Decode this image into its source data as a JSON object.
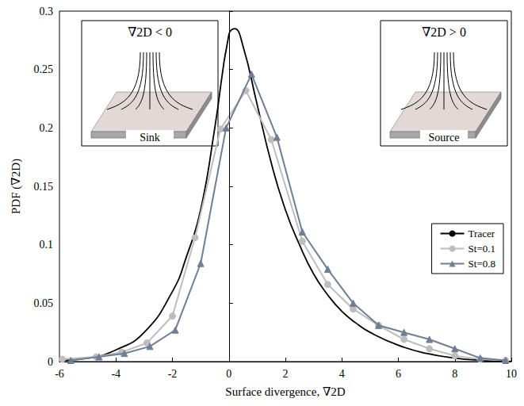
{
  "chart_data": {
    "type": "line",
    "x_label": "Surface divergence, ∇2D",
    "y_label": "PDF (∇2D)",
    "xlim": [
      -6,
      10
    ],
    "xticks": [
      -6,
      -4,
      -2,
      0,
      2,
      4,
      6,
      8,
      10
    ],
    "ylim": [
      0,
      0.3
    ],
    "yticks": [
      0,
      0.05,
      0.1,
      0.15,
      0.2,
      0.25,
      0.3
    ],
    "grid": false,
    "legend": "right",
    "series": [
      {
        "name": "Tracer",
        "color": "#000000",
        "marker": "none",
        "line_style": "solid",
        "x": [
          -6,
          -5,
          -4,
          -3,
          -2,
          -1.5,
          -1,
          -0.5,
          0,
          0.2,
          0.5,
          1,
          1.5,
          2,
          2.5,
          3,
          3.5,
          4,
          4.5,
          5,
          6,
          7,
          8,
          9,
          10
        ],
        "values": [
          0.001,
          0.003,
          0.01,
          0.025,
          0.06,
          0.09,
          0.13,
          0.2,
          0.28,
          0.285,
          0.27,
          0.22,
          0.17,
          0.13,
          0.1,
          0.075,
          0.057,
          0.043,
          0.033,
          0.025,
          0.014,
          0.007,
          0.003,
          0.001,
          0.0
        ]
      },
      {
        "name": "St=0.1",
        "color": "#bdbdbd",
        "marker": "circle",
        "line_style": "solid",
        "x": [
          -5.9,
          -4.7,
          -3.8,
          -2.9,
          -2.0,
          -1.2,
          -0.3,
          0.6,
          1.5,
          2.6,
          3.5,
          4.4,
          5.3,
          6.2,
          7.1,
          8.0,
          8.9,
          9.8
        ],
        "values": [
          0.002,
          0.004,
          0.008,
          0.016,
          0.039,
          0.106,
          0.199,
          0.232,
          0.19,
          0.103,
          0.066,
          0.045,
          0.031,
          0.019,
          0.011,
          0.005,
          0.002,
          0.001
        ]
      },
      {
        "name": "St=0.8",
        "color": "#6e7f94",
        "marker": "triangle",
        "line_style": "solid",
        "x": [
          -5.6,
          -4.6,
          -3.7,
          -2.8,
          -1.9,
          -1.0,
          -0.1,
          0.8,
          1.7,
          2.6,
          3.5,
          4.4,
          5.3,
          6.2,
          7.1,
          8.0,
          8.9,
          9.8
        ],
        "values": [
          0.001,
          0.004,
          0.007,
          0.013,
          0.027,
          0.084,
          0.2,
          0.246,
          0.192,
          0.111,
          0.079,
          0.05,
          0.031,
          0.025,
          0.019,
          0.011,
          0.003,
          0.001
        ]
      }
    ],
    "annotations": [
      {
        "type": "vline",
        "x": 0
      },
      {
        "type": "inset",
        "title": "∇2D < 0",
        "caption": "Sink"
      },
      {
        "type": "inset",
        "title": "∇2D > 0",
        "caption": "Source"
      }
    ]
  }
}
